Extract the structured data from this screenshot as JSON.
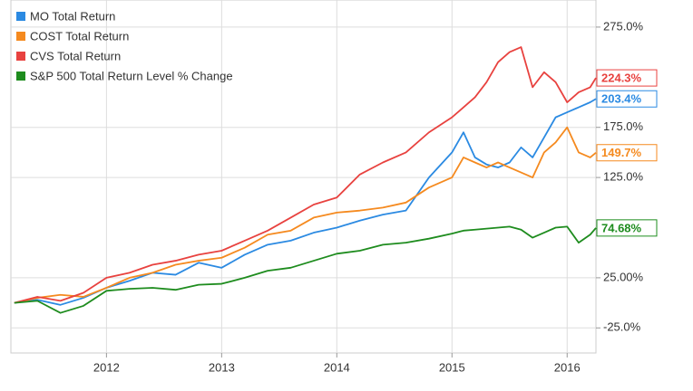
{
  "chart_data": {
    "type": "line",
    "x": [
      2011.2,
      2011.4,
      2011.6,
      2011.8,
      2012,
      2012.2,
      2012.4,
      2012.6,
      2012.8,
      2013,
      2013.2,
      2013.4,
      2013.6,
      2013.8,
      2014,
      2014.2,
      2014.4,
      2014.6,
      2014.8,
      2015,
      2015.1,
      2015.2,
      2015.3,
      2015.4,
      2015.5,
      2015.6,
      2015.7,
      2015.8,
      2015.9,
      2016,
      2016.1,
      2016.2,
      2016.25
    ],
    "xlim": [
      2011.17,
      2016.25
    ],
    "xticks": [
      2012,
      2013,
      2014,
      2015,
      2016
    ],
    "ylim": [
      -50,
      302
    ],
    "yticks": [
      {
        "value": 275,
        "label": "275.0%"
      },
      {
        "value": 175,
        "label": "175.0%"
      },
      {
        "value": 125,
        "label": "125.0%"
      },
      {
        "value": 25,
        "label": "25.00%"
      },
      {
        "value": -25,
        "label": "-25.0%"
      }
    ],
    "grid": true,
    "legend": "top-left",
    "series": [
      {
        "name": "MO Total Return",
        "color": "#2b8ae2",
        "values": [
          0,
          3,
          -2,
          5,
          15,
          22,
          30,
          28,
          40,
          35,
          48,
          58,
          62,
          70,
          75,
          82,
          88,
          92,
          125,
          150,
          170,
          145,
          138,
          135,
          140,
          155,
          145,
          165,
          185,
          190,
          195,
          200,
          203.4
        ],
        "value_labels": [
          null,
          null,
          null,
          null,
          null,
          null,
          null,
          null,
          null,
          null,
          null,
          null,
          null,
          null,
          null,
          null,
          null,
          null,
          null,
          null,
          null,
          null,
          null,
          null,
          null,
          null,
          null,
          null,
          null,
          null,
          null,
          null,
          "203.4%"
        ]
      },
      {
        "name": "COST Total Return",
        "color": "#f58a1f",
        "values": [
          0,
          5,
          8,
          6,
          15,
          25,
          30,
          38,
          42,
          45,
          55,
          68,
          72,
          85,
          90,
          92,
          95,
          100,
          115,
          125,
          145,
          140,
          135,
          140,
          135,
          130,
          125,
          150,
          160,
          175,
          150,
          145,
          149.7
        ],
        "value_labels": [
          null,
          null,
          null,
          null,
          null,
          null,
          null,
          null,
          null,
          null,
          null,
          null,
          null,
          null,
          null,
          null,
          null,
          null,
          null,
          null,
          null,
          null,
          null,
          null,
          null,
          null,
          null,
          null,
          null,
          null,
          null,
          null,
          "149.7%"
        ]
      },
      {
        "name": "CVS Total Return",
        "color": "#e8423f",
        "values": [
          0,
          6,
          2,
          10,
          25,
          30,
          38,
          42,
          48,
          52,
          62,
          72,
          85,
          98,
          105,
          128,
          140,
          150,
          170,
          185,
          195,
          205,
          220,
          240,
          250,
          255,
          215,
          230,
          220,
          200,
          210,
          215,
          224.3
        ],
        "value_labels": [
          null,
          null,
          null,
          null,
          null,
          null,
          null,
          null,
          null,
          null,
          null,
          null,
          null,
          null,
          null,
          null,
          null,
          null,
          null,
          null,
          null,
          null,
          null,
          null,
          null,
          null,
          null,
          null,
          null,
          null,
          null,
          null,
          "224.3%"
        ]
      },
      {
        "name": "S&P 500 Total Return Level % Change",
        "color": "#1e8c1e",
        "values": [
          0,
          2,
          -10,
          -3,
          12,
          14,
          15,
          13,
          18,
          19,
          25,
          32,
          35,
          42,
          49,
          52,
          58,
          60,
          64,
          69,
          72,
          73,
          74,
          75,
          76,
          73,
          65,
          70,
          75,
          76,
          60,
          68,
          74.68
        ],
        "value_labels": [
          null,
          null,
          null,
          null,
          null,
          null,
          null,
          null,
          null,
          null,
          null,
          null,
          null,
          null,
          null,
          null,
          null,
          null,
          null,
          null,
          null,
          null,
          null,
          null,
          null,
          null,
          null,
          null,
          null,
          null,
          null,
          null,
          "74.68%"
        ]
      }
    ]
  }
}
